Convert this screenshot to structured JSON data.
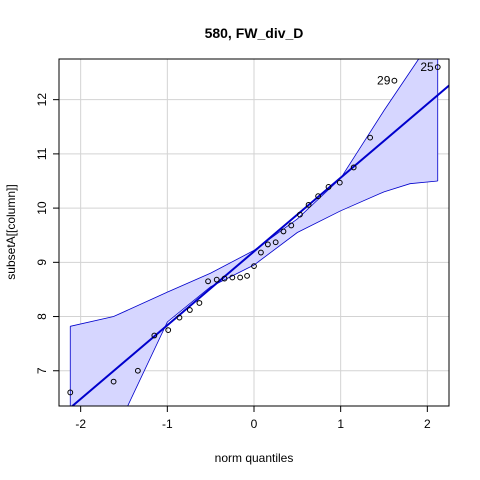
{
  "chart_data": {
    "type": "scatter",
    "title": "580, FW_div_D",
    "xlabel": "norm quantiles",
    "ylabel": "subsetA[[column]]",
    "xlim": [
      -2.25,
      2.25
    ],
    "ylim": [
      6.35,
      12.75
    ],
    "xticks": [
      -2,
      -1,
      0,
      1,
      2
    ],
    "yticks": [
      7,
      8,
      9,
      10,
      11,
      12
    ],
    "grid": true,
    "colors": {
      "points": "#000000",
      "line": "#0000cc",
      "band_fill": "#d6d6ff",
      "band_edge": "#0000cc",
      "grid": "#d3d3d3"
    },
    "points": [
      {
        "x": -2.12,
        "y": 6.6
      },
      {
        "x": -1.62,
        "y": 6.8
      },
      {
        "x": -1.34,
        "y": 7.0
      },
      {
        "x": -1.15,
        "y": 7.65
      },
      {
        "x": -0.99,
        "y": 7.75
      },
      {
        "x": -0.86,
        "y": 7.98
      },
      {
        "x": -0.74,
        "y": 8.12
      },
      {
        "x": -0.63,
        "y": 8.25
      },
      {
        "x": -0.53,
        "y": 8.65
      },
      {
        "x": -0.43,
        "y": 8.68
      },
      {
        "x": -0.34,
        "y": 8.7
      },
      {
        "x": -0.25,
        "y": 8.72
      },
      {
        "x": -0.16,
        "y": 8.72
      },
      {
        "x": -0.08,
        "y": 8.75
      },
      {
        "x": 0.0,
        "y": 8.93
      },
      {
        "x": 0.08,
        "y": 9.18
      },
      {
        "x": 0.16,
        "y": 9.33
      },
      {
        "x": 0.25,
        "y": 9.37
      },
      {
        "x": 0.34,
        "y": 9.57
      },
      {
        "x": 0.43,
        "y": 9.68
      },
      {
        "x": 0.53,
        "y": 9.88
      },
      {
        "x": 0.63,
        "y": 10.06
      },
      {
        "x": 0.74,
        "y": 10.22
      },
      {
        "x": 0.86,
        "y": 10.39
      },
      {
        "x": 0.99,
        "y": 10.47
      },
      {
        "x": 1.15,
        "y": 10.75
      },
      {
        "x": 1.34,
        "y": 11.3
      },
      {
        "x": 1.62,
        "y": 12.35
      },
      {
        "x": 2.12,
        "y": 12.6
      }
    ],
    "reference_line": {
      "intercept": 9.2,
      "slope": 1.36
    },
    "confidence_band": {
      "upper": [
        [
          -2.12,
          7.82
        ],
        [
          -1.62,
          8.0
        ],
        [
          -1.0,
          8.45
        ],
        [
          -0.5,
          8.8
        ],
        [
          0.0,
          9.22
        ],
        [
          0.5,
          9.8
        ],
        [
          1.0,
          10.55
        ],
        [
          1.5,
          11.8
        ],
        [
          1.9,
          12.75
        ],
        [
          2.12,
          13.4
        ]
      ],
      "lower": [
        [
          -2.12,
          5.1
        ],
        [
          -1.62,
          5.8
        ],
        [
          -1.0,
          7.9
        ],
        [
          -0.5,
          8.55
        ],
        [
          0.0,
          8.95
        ],
        [
          0.5,
          9.55
        ],
        [
          1.0,
          9.95
        ],
        [
          1.5,
          10.3
        ],
        [
          1.8,
          10.45
        ],
        [
          2.12,
          10.5
        ]
      ]
    },
    "annotations": [
      {
        "label": "29",
        "x": 1.62,
        "y": 12.35,
        "side": "left"
      },
      {
        "label": "25",
        "x": 2.12,
        "y": 12.6,
        "side": "left"
      }
    ]
  }
}
